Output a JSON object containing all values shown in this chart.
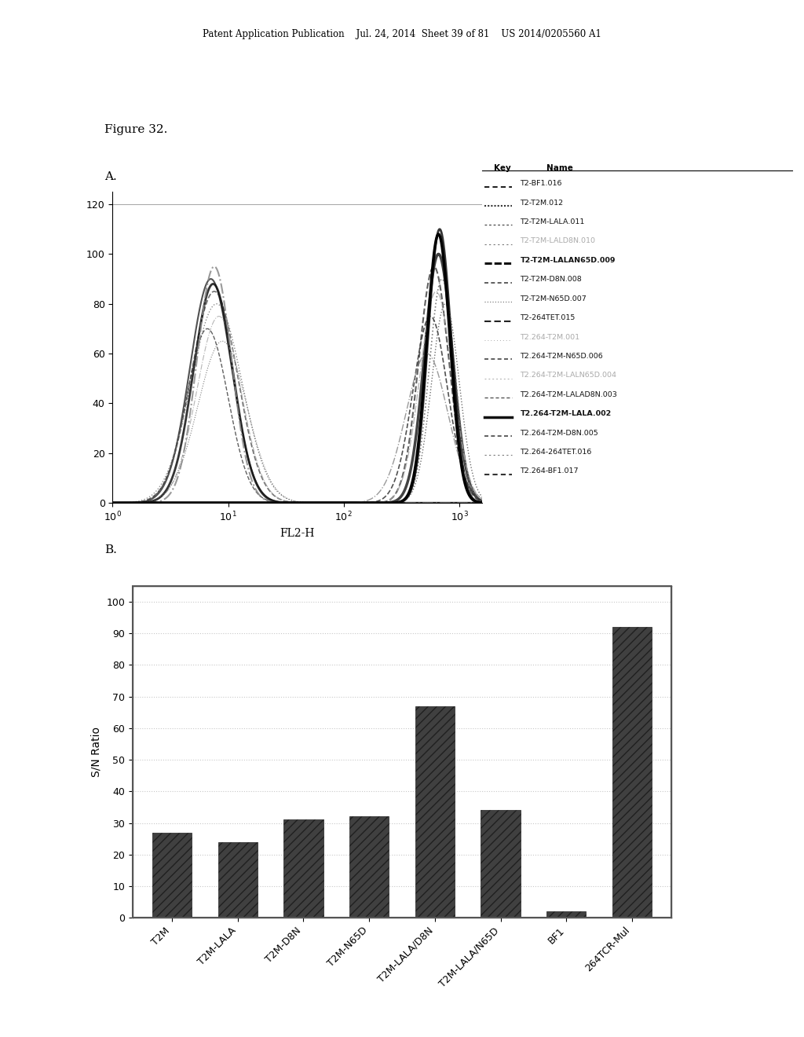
{
  "header_text": "Patent Application Publication    Jul. 24, 2014  Sheet 39 of 81    US 2014/0205560 A1",
  "figure_label": "Figure 32.",
  "panel_a_label": "A.",
  "panel_b_label": "B.",
  "flow_cytometry": {
    "xlabel": "FL2-H",
    "yticks": [
      0,
      20,
      40,
      60,
      80,
      100,
      120
    ],
    "legend_entries": [
      {
        "name": "T2-BF1.016",
        "bold": false,
        "faint": false
      },
      {
        "name": "T2-T2M.012",
        "bold": false,
        "faint": false
      },
      {
        "name": "T2-T2M-LALA.011",
        "bold": false,
        "faint": false
      },
      {
        "name": "T2-T2M-LALD8N.010",
        "bold": false,
        "faint": true
      },
      {
        "name": "T2-T2M-LALAN65D.009",
        "bold": true,
        "faint": false
      },
      {
        "name": "T2-T2M-D8N.008",
        "bold": false,
        "faint": false
      },
      {
        "name": "T2-T2M-N65D.007",
        "bold": false,
        "faint": false
      },
      {
        "name": "T2-264TET.015",
        "bold": false,
        "faint": false
      },
      {
        "name": "T2.264-T2M.001",
        "bold": false,
        "faint": true
      },
      {
        "name": "T2.264-T2M-N65D.006",
        "bold": false,
        "faint": false
      },
      {
        "name": "T2.264-T2M-LALN65D.004",
        "bold": false,
        "faint": true
      },
      {
        "name": "T2.264-T2M-LALAD8N.003",
        "bold": false,
        "faint": false
      },
      {
        "name": "T2.264-T2M-LALA.002",
        "bold": true,
        "faint": false
      },
      {
        "name": "T2.264-T2M-D8N.005",
        "bold": false,
        "faint": false
      },
      {
        "name": "T2.264-264TET.016",
        "bold": false,
        "faint": false
      },
      {
        "name": "T2.264-BF1.017",
        "bold": false,
        "faint": false
      }
    ]
  },
  "bar_chart": {
    "categories": [
      "T2M",
      "T2M-LALA",
      "T2M-D8N",
      "T2M-N65D",
      "T2M-LALA/D8N",
      "T2M-LALA/N65D",
      "BF1",
      "264TCR-Mul"
    ],
    "values": [
      27,
      24,
      31,
      32,
      67,
      34,
      2,
      92
    ],
    "ylabel": "S/N Ratio",
    "yticks": [
      0,
      10,
      20,
      30,
      40,
      50,
      60,
      70,
      80,
      90,
      100
    ],
    "bar_color": "#404040",
    "bar_edge_color": "#202020",
    "grid_color": "#bbbbbb"
  }
}
